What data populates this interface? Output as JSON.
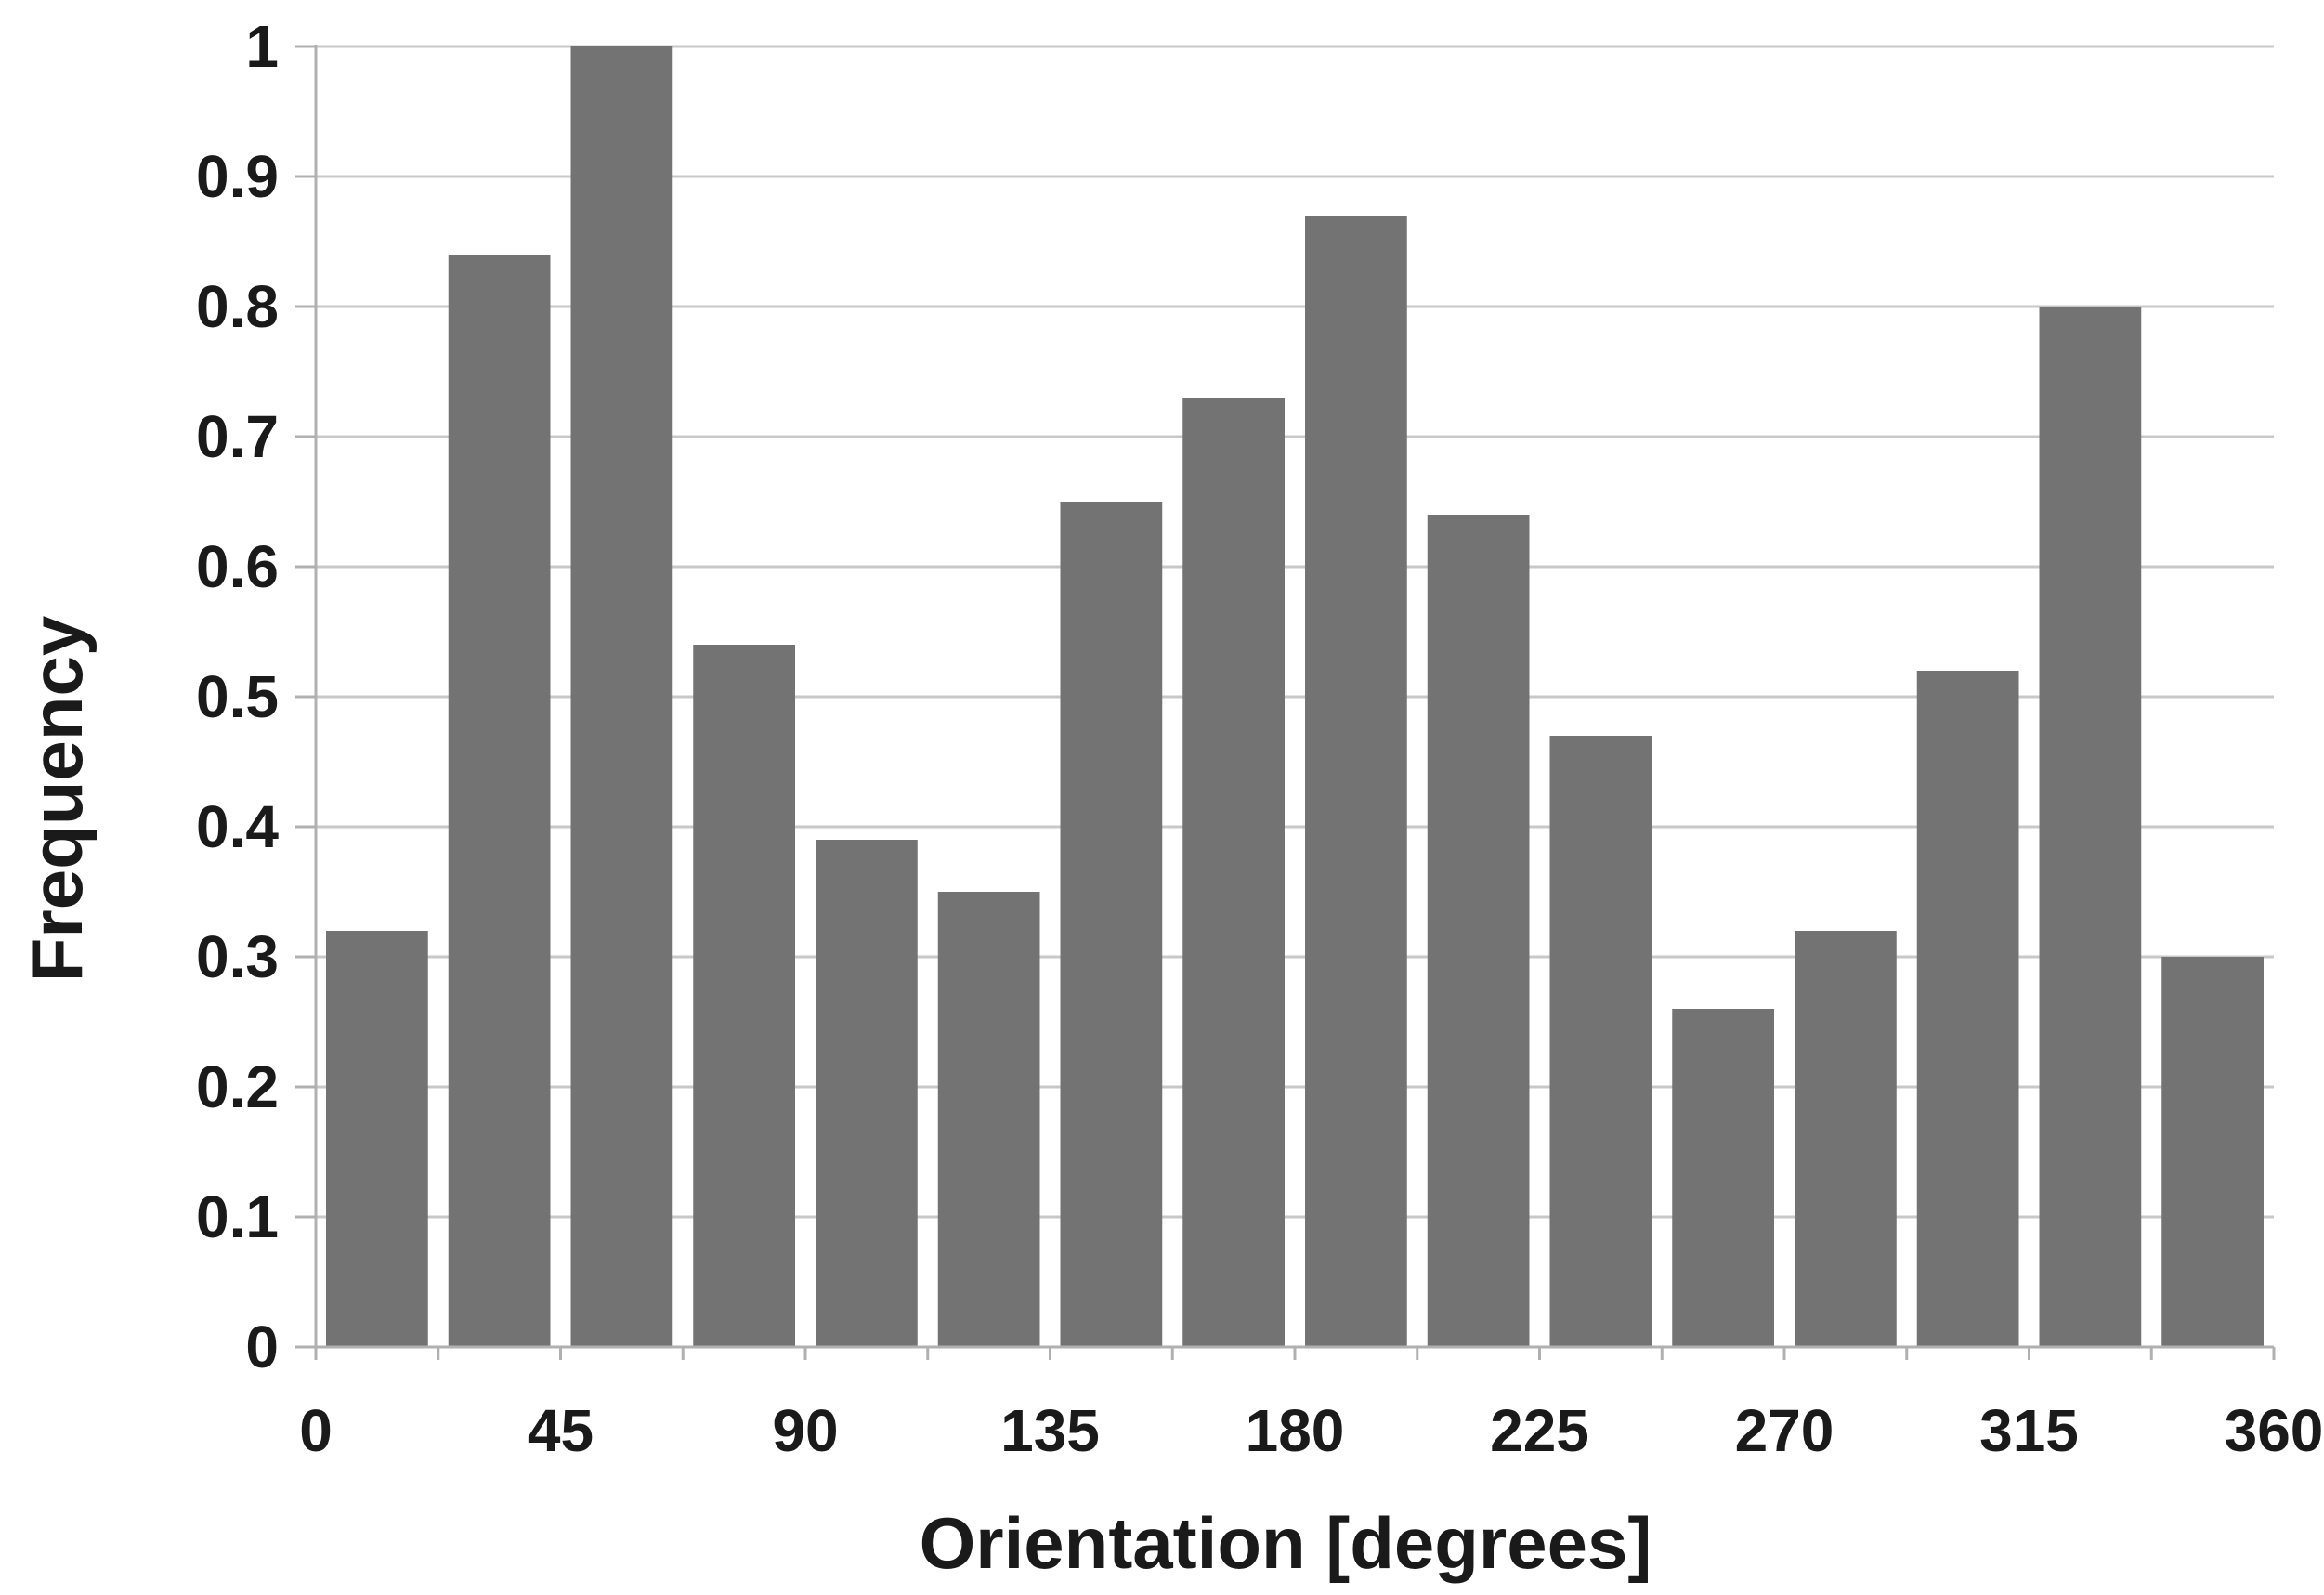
{
  "chart_data": {
    "type": "bar",
    "title": "",
    "xlabel": "Orientation [degrees]",
    "ylabel": "Frequency",
    "bin_width": 22.5,
    "x_bin_starts": [
      0,
      22.5,
      45,
      67.5,
      90,
      112.5,
      135,
      157.5,
      180,
      202.5,
      225,
      247.5,
      270,
      292.5,
      315,
      337.5
    ],
    "values": [
      0.32,
      0.84,
      1.0,
      0.54,
      0.39,
      0.35,
      0.65,
      0.73,
      0.87,
      0.64,
      0.47,
      0.26,
      0.32,
      0.52,
      0.8,
      0.3
    ],
    "xlim": [
      0,
      360
    ],
    "ylim": [
      0,
      1
    ],
    "x_ticks": [
      0,
      45,
      90,
      135,
      180,
      225,
      270,
      315,
      360
    ],
    "x_tick_labels": [
      "0",
      "45",
      "90",
      "135",
      "180",
      "225",
      "270",
      "315",
      "360"
    ],
    "y_ticks": [
      0,
      0.1,
      0.2,
      0.3,
      0.4,
      0.5,
      0.6,
      0.7,
      0.8,
      0.9,
      1
    ],
    "y_tick_labels": [
      "0",
      "0.1",
      "0.2",
      "0.3",
      "0.4",
      "0.5",
      "0.6",
      "0.7",
      "0.8",
      "0.9",
      "1"
    ],
    "grid": true,
    "legend": false,
    "colors": {
      "bar": "#737373",
      "grid": "#c8c8c8",
      "axis": "#b0b0b0"
    }
  }
}
